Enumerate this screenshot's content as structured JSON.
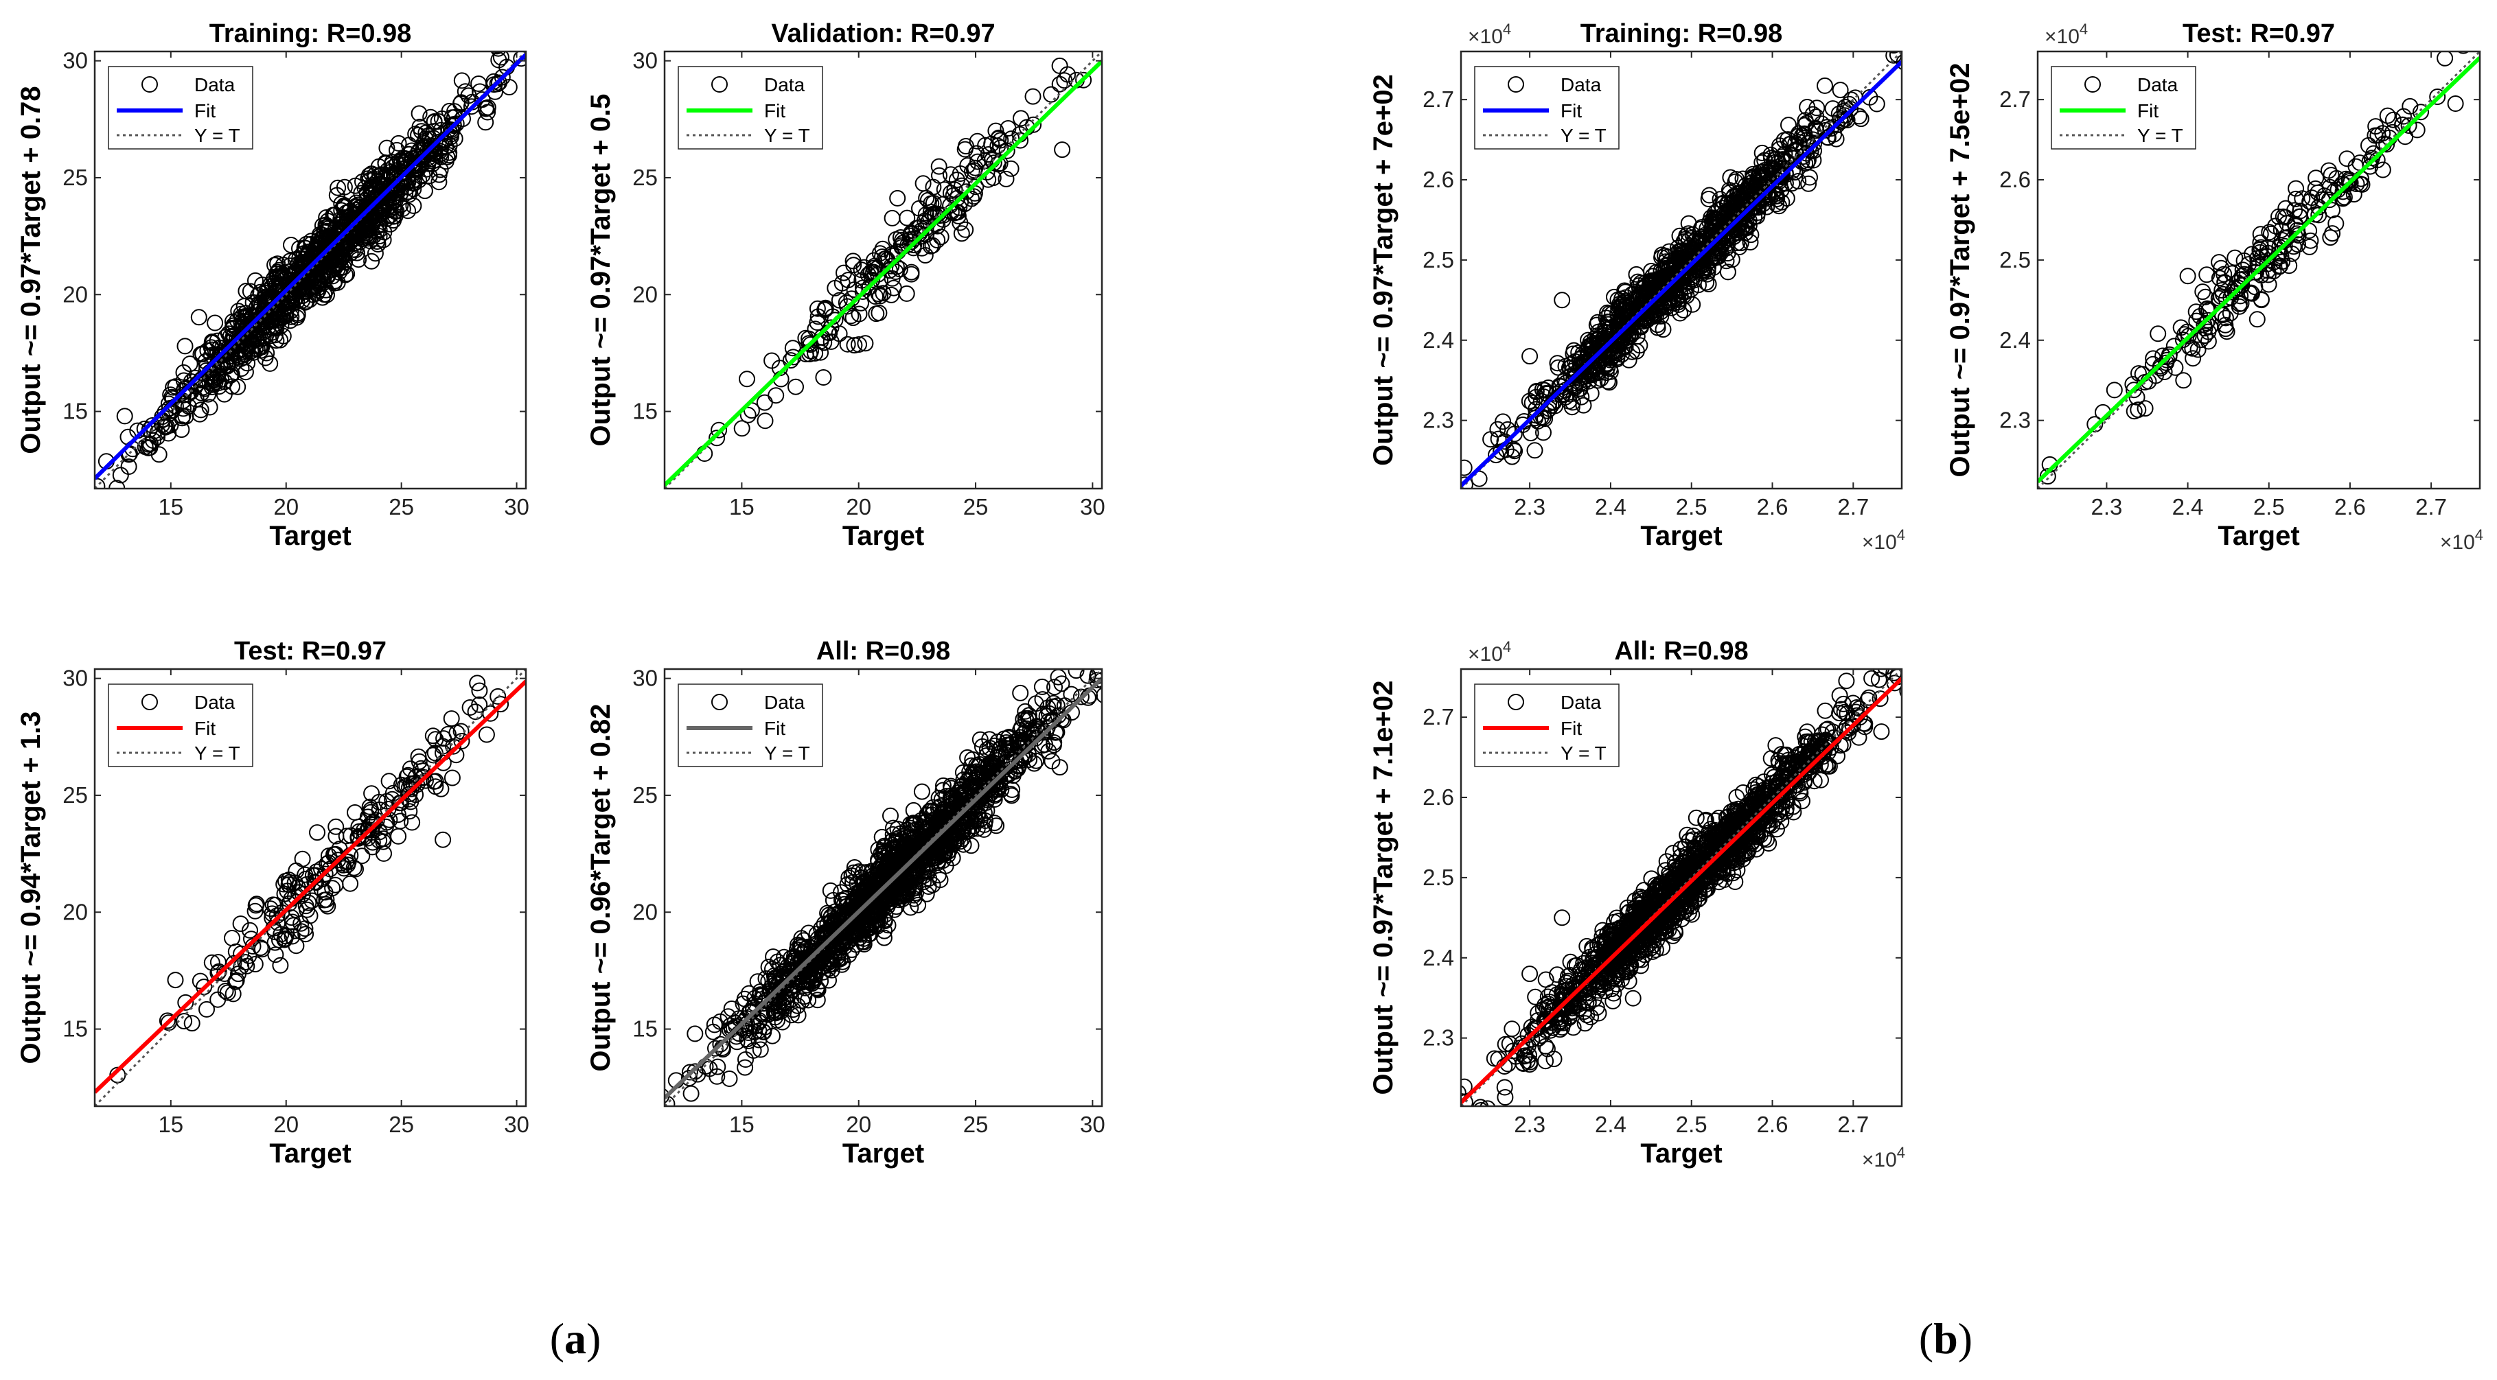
{
  "panel_labels": [
    {
      "open": "(",
      "letter": "a",
      "close": ")"
    },
    {
      "open": "(",
      "letter": "b",
      "close": ")"
    }
  ],
  "legend_labels": {
    "data": "Data",
    "fit": "Fit",
    "yt": "Y = T"
  },
  "colors": {
    "training": "#0000ff",
    "validation": "#00ff00",
    "test_a": "#ff0000",
    "all_a": "#666666",
    "test_b": "#00ff00",
    "all_b": "#ff0000",
    "marker": "#000000",
    "yt_line": "#555555"
  },
  "chart_data": [
    {
      "type": "scatter",
      "group": "a",
      "title": "Training: R=0.98",
      "xlabel": "Target",
      "ylabel": "Output ~= 0.97*Target + 0.78",
      "xlim": [
        11.7,
        30.4
      ],
      "ylim": [
        11.7,
        30.4
      ],
      "xticks": [
        15,
        20,
        25,
        30
      ],
      "yticks": [
        15,
        20,
        25,
        30
      ],
      "exponent": "",
      "r": 0.98,
      "slope": 0.97,
      "intercept": 0.78,
      "fit_color_key": "training",
      "n_points": 1100,
      "center": 21.5,
      "spread": 3.3,
      "noise": 0.75,
      "seed": 11,
      "extra_points": [
        [
          11.8,
          11.8
        ],
        [
          13.0,
          14.8
        ],
        [
          30.2,
          30.1
        ],
        [
          14.2,
          14.4
        ]
      ]
    },
    {
      "type": "scatter",
      "group": "a",
      "title": "Validation: R=0.97",
      "xlabel": "Target",
      "ylabel": "Output ~= 0.97*Target + 0.5",
      "xlim": [
        11.7,
        30.4
      ],
      "ylim": [
        11.7,
        30.4
      ],
      "xticks": [
        15,
        20,
        25,
        30
      ],
      "yticks": [
        15,
        20,
        25,
        30
      ],
      "exponent": "",
      "r": 0.97,
      "slope": 0.97,
      "intercept": 0.5,
      "fit_color_key": "validation",
      "n_points": 230,
      "center": 21.8,
      "spread": 3.1,
      "noise": 0.8,
      "seed": 23,
      "extra_points": [
        [
          16.0,
          14.6
        ],
        [
          28.6,
          29.0
        ],
        [
          28.7,
          26.2
        ]
      ]
    },
    {
      "type": "scatter",
      "group": "a",
      "title": "Test: R=0.97",
      "xlabel": "Target",
      "ylabel": "Output ~= 0.94*Target + 1.3",
      "xlim": [
        11.7,
        30.4
      ],
      "ylim": [
        11.7,
        30.4
      ],
      "xticks": [
        15,
        20,
        25,
        30
      ],
      "yticks": [
        15,
        20,
        25,
        30
      ],
      "exponent": "",
      "r": 0.97,
      "slope": 0.94,
      "intercept": 1.3,
      "fit_color_key": "test_a",
      "n_points": 230,
      "center": 22.0,
      "spread": 3.0,
      "noise": 0.85,
      "seed": 37,
      "extra_points": [
        [
          15.2,
          17.1
        ],
        [
          29.3,
          28.9
        ],
        [
          26.8,
          23.1
        ]
      ]
    },
    {
      "type": "scatter",
      "group": "a",
      "title": "All: R=0.98",
      "xlabel": "Target",
      "ylabel": "Output ~= 0.96*Target + 0.82",
      "xlim": [
        11.7,
        30.4
      ],
      "ylim": [
        11.7,
        30.4
      ],
      "xticks": [
        15,
        20,
        25,
        30
      ],
      "yticks": [
        15,
        20,
        25,
        30
      ],
      "exponent": "",
      "r": 0.98,
      "slope": 0.96,
      "intercept": 0.82,
      "fit_color_key": "all_a",
      "n_points": 1500,
      "center": 21.6,
      "spread": 3.3,
      "noise": 0.78,
      "seed": 41,
      "extra_points": [
        [
          11.8,
          11.8
        ],
        [
          13.0,
          14.8
        ],
        [
          30.2,
          30.1
        ],
        [
          28.6,
          26.2
        ]
      ]
    },
    {
      "type": "scatter",
      "group": "b",
      "title": "Training: R=0.98",
      "xlabel": "Target",
      "ylabel": "Output ~= 0.97*Target + 7e+02",
      "xlim": [
        2.215,
        2.76
      ],
      "ylim": [
        2.215,
        2.76
      ],
      "xticks": [
        2.3,
        2.4,
        2.5,
        2.6,
        2.7
      ],
      "yticks": [
        2.3,
        2.4,
        2.5,
        2.6,
        2.7
      ],
      "exponent": "4",
      "r": 0.98,
      "slope": 0.97,
      "intercept": 0.07,
      "fit_color_key": "training",
      "n_points": 1100,
      "center": 2.49,
      "spread": 0.095,
      "noise": 0.02,
      "seed": 53,
      "extra_points": [
        [
          2.22,
          2.22
        ],
        [
          2.75,
          2.755
        ],
        [
          2.3,
          2.38
        ],
        [
          2.34,
          2.45
        ]
      ]
    },
    {
      "type": "scatter",
      "group": "b",
      "title": "Test: R=0.97",
      "xlabel": "Target",
      "ylabel": "Output ~= 0.97*Target + 7.5e+02",
      "xlim": [
        2.215,
        2.76
      ],
      "ylim": [
        2.215,
        2.76
      ],
      "xticks": [
        2.3,
        2.4,
        2.5,
        2.6,
        2.7
      ],
      "yticks": [
        2.3,
        2.4,
        2.5,
        2.6,
        2.7
      ],
      "exponent": "4",
      "r": 0.97,
      "slope": 0.97,
      "intercept": 0.075,
      "fit_color_key": "test_b",
      "n_points": 230,
      "center": 2.49,
      "spread": 0.09,
      "noise": 0.022,
      "seed": 67,
      "extra_points": [
        [
          2.23,
          2.245
        ],
        [
          2.4,
          2.48
        ],
        [
          2.73,
          2.695
        ]
      ]
    },
    {
      "type": "scatter",
      "group": "b",
      "title": "All: R=0.98",
      "xlabel": "Target",
      "ylabel": "Output ~= 0.97*Target + 7.1e+02",
      "xlim": [
        2.215,
        2.76
      ],
      "ylim": [
        2.215,
        2.76
      ],
      "xticks": [
        2.3,
        2.4,
        2.5,
        2.6,
        2.7
      ],
      "yticks": [
        2.3,
        2.4,
        2.5,
        2.6,
        2.7
      ],
      "exponent": "4",
      "r": 0.98,
      "slope": 0.97,
      "intercept": 0.071,
      "fit_color_key": "all_b",
      "n_points": 1500,
      "center": 2.49,
      "spread": 0.095,
      "noise": 0.02,
      "seed": 79,
      "extra_points": [
        [
          2.22,
          2.22
        ],
        [
          2.75,
          2.755
        ],
        [
          2.3,
          2.38
        ],
        [
          2.34,
          2.45
        ]
      ]
    }
  ]
}
